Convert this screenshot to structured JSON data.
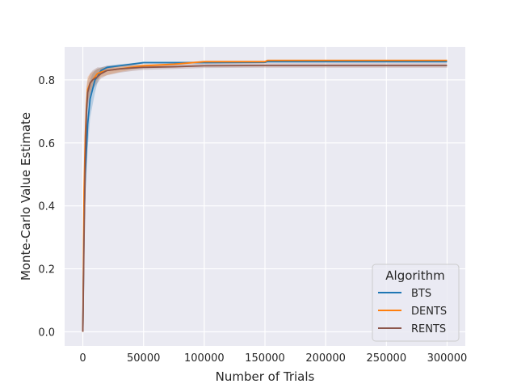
{
  "chart_data": {
    "type": "line",
    "title": "",
    "xlabel": "Number of Trials",
    "ylabel": "Monte-Carlo Value Estimate",
    "xlim": [
      -15000,
      315000
    ],
    "ylim": [
      -0.045,
      0.905
    ],
    "xticks": [
      0,
      50000,
      100000,
      150000,
      200000,
      250000,
      300000
    ],
    "xtick_labels": [
      "0",
      "50000",
      "100000",
      "150000",
      "200000",
      "250000",
      "300000"
    ],
    "yticks": [
      0.0,
      0.2,
      0.4,
      0.6,
      0.8
    ],
    "ytick_labels": [
      "0.0",
      "0.2",
      "0.4",
      "0.6",
      "0.8"
    ],
    "grid": true,
    "background": "#eaeaf2",
    "legend": {
      "title": "Algorithm",
      "placement": "lower-right"
    },
    "series": [
      {
        "name": "BTS",
        "color": "#1f77b4",
        "x": [
          0,
          1000,
          2000,
          3000,
          4000,
          5000,
          6000,
          8000,
          10000,
          12000,
          15000,
          20000,
          30000,
          40000,
          50000,
          75000,
          100000,
          150000,
          152000,
          200000,
          250000,
          300000
        ],
        "y": [
          0.0,
          0.35,
          0.5,
          0.58,
          0.66,
          0.7,
          0.74,
          0.77,
          0.8,
          0.81,
          0.83,
          0.84,
          0.845,
          0.85,
          0.855,
          0.855,
          0.855,
          0.856,
          0.858,
          0.858,
          0.858,
          0.858
        ],
        "lower": [
          0.0,
          0.28,
          0.42,
          0.5,
          0.58,
          0.63,
          0.68,
          0.72,
          0.76,
          0.79,
          0.82,
          0.835,
          0.842,
          0.847,
          0.852,
          0.852,
          0.852,
          0.853,
          0.855,
          0.855,
          0.855,
          0.855
        ],
        "upper": [
          0.0,
          0.42,
          0.58,
          0.66,
          0.74,
          0.77,
          0.8,
          0.82,
          0.83,
          0.835,
          0.84,
          0.845,
          0.85,
          0.853,
          0.858,
          0.858,
          0.858,
          0.859,
          0.861,
          0.861,
          0.861,
          0.861
        ]
      },
      {
        "name": "DENTS",
        "color": "#ff7f0e",
        "x": [
          0,
          1000,
          2000,
          3000,
          4000,
          6000,
          8000,
          10000,
          12000,
          15000,
          20000,
          30000,
          40000,
          50000,
          75000,
          100000,
          150000,
          152000,
          200000,
          250000,
          300000
        ],
        "y": [
          0.0,
          0.45,
          0.62,
          0.72,
          0.77,
          0.79,
          0.8,
          0.81,
          0.82,
          0.825,
          0.83,
          0.835,
          0.84,
          0.845,
          0.85,
          0.858,
          0.858,
          0.862,
          0.862,
          0.862,
          0.862
        ],
        "lower": [
          0.0,
          0.38,
          0.55,
          0.66,
          0.73,
          0.76,
          0.78,
          0.79,
          0.8,
          0.81,
          0.815,
          0.825,
          0.832,
          0.84,
          0.847,
          0.855,
          0.855,
          0.859,
          0.859,
          0.859,
          0.859
        ],
        "upper": [
          0.0,
          0.52,
          0.69,
          0.78,
          0.81,
          0.82,
          0.825,
          0.83,
          0.835,
          0.838,
          0.842,
          0.845,
          0.848,
          0.85,
          0.853,
          0.861,
          0.861,
          0.865,
          0.865,
          0.865,
          0.865
        ]
      },
      {
        "name": "RENTS",
        "color": "#8c564b",
        "x": [
          0,
          1000,
          2000,
          3000,
          4000,
          6000,
          8000,
          10000,
          12000,
          15000,
          20000,
          30000,
          40000,
          50000,
          75000,
          100000,
          150000,
          200000,
          250000,
          300000
        ],
        "y": [
          0.0,
          0.3,
          0.55,
          0.7,
          0.76,
          0.79,
          0.8,
          0.805,
          0.81,
          0.82,
          0.83,
          0.835,
          0.838,
          0.84,
          0.842,
          0.845,
          0.846,
          0.846,
          0.846,
          0.846
        ],
        "lower": [
          0.0,
          0.22,
          0.46,
          0.62,
          0.71,
          0.75,
          0.77,
          0.78,
          0.79,
          0.805,
          0.815,
          0.823,
          0.828,
          0.832,
          0.835,
          0.838,
          0.839,
          0.839,
          0.839,
          0.839
        ],
        "upper": [
          0.0,
          0.38,
          0.64,
          0.77,
          0.8,
          0.82,
          0.83,
          0.835,
          0.84,
          0.84,
          0.845,
          0.847,
          0.848,
          0.848,
          0.849,
          0.852,
          0.853,
          0.853,
          0.853,
          0.853
        ]
      }
    ]
  }
}
